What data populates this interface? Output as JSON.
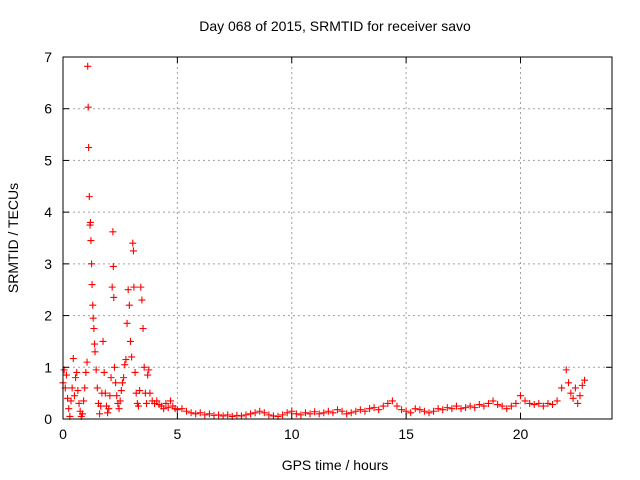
{
  "chart_data": {
    "type": "scatter",
    "title": "Day 068 of 2015, SRMTID for receiver savo",
    "xlabel": "GPS time / hours",
    "ylabel": "SRMTID / TECUs",
    "xlim": [
      0,
      24
    ],
    "ylim": [
      0,
      7
    ],
    "xticks": [
      0,
      5,
      10,
      15,
      20
    ],
    "yticks": [
      0,
      1,
      2,
      3,
      4,
      5,
      6,
      7
    ],
    "xtick_labels": [
      "0",
      "5",
      "10",
      "15",
      "20"
    ],
    "ytick_labels": [
      "0",
      "1",
      "2",
      "3",
      "4",
      "5",
      "6",
      "7"
    ],
    "grid": true,
    "marker": "+",
    "series": [
      {
        "name": "savo",
        "color": "#ff0000",
        "points": [
          [
            0.0,
            0.7
          ],
          [
            0.05,
            0.95
          ],
          [
            0.1,
            0.6
          ],
          [
            0.15,
            0.85
          ],
          [
            0.2,
            0.4
          ],
          [
            0.25,
            0.2
          ],
          [
            0.3,
            0.05
          ],
          [
            0.35,
            0.35
          ],
          [
            0.4,
            0.6
          ],
          [
            0.45,
            1.17
          ],
          [
            0.5,
            0.45
          ],
          [
            0.55,
            0.8
          ],
          [
            0.6,
            0.9
          ],
          [
            0.65,
            0.55
          ],
          [
            0.7,
            0.3
          ],
          [
            0.75,
            0.15
          ],
          [
            0.8,
            0.05
          ],
          [
            0.85,
            0.1
          ],
          [
            0.9,
            0.35
          ],
          [
            0.95,
            0.6
          ],
          [
            1.0,
            0.9
          ],
          [
            1.05,
            1.1
          ],
          [
            1.08,
            6.82
          ],
          [
            1.1,
            6.03
          ],
          [
            1.12,
            5.25
          ],
          [
            1.15,
            4.3
          ],
          [
            1.18,
            3.75
          ],
          [
            1.2,
            3.8
          ],
          [
            1.22,
            3.45
          ],
          [
            1.25,
            3.0
          ],
          [
            1.27,
            2.6
          ],
          [
            1.3,
            2.2
          ],
          [
            1.32,
            1.95
          ],
          [
            1.35,
            1.75
          ],
          [
            1.38,
            1.45
          ],
          [
            1.4,
            1.3
          ],
          [
            1.45,
            0.95
          ],
          [
            1.5,
            0.6
          ],
          [
            1.55,
            0.3
          ],
          [
            1.6,
            0.1
          ],
          [
            1.65,
            0.25
          ],
          [
            1.7,
            0.5
          ],
          [
            1.75,
            1.5
          ],
          [
            1.8,
            0.9
          ],
          [
            1.85,
            0.5
          ],
          [
            1.9,
            0.25
          ],
          [
            1.95,
            0.12
          ],
          [
            2.0,
            0.2
          ],
          [
            2.05,
            0.45
          ],
          [
            2.1,
            0.8
          ],
          [
            2.15,
            2.55
          ],
          [
            2.18,
            3.62
          ],
          [
            2.2,
            2.95
          ],
          [
            2.22,
            2.35
          ],
          [
            2.25,
            1.0
          ],
          [
            2.3,
            0.7
          ],
          [
            2.35,
            0.45
          ],
          [
            2.4,
            0.3
          ],
          [
            2.45,
            0.2
          ],
          [
            2.5,
            0.35
          ],
          [
            2.55,
            0.55
          ],
          [
            2.6,
            0.7
          ],
          [
            2.65,
            0.8
          ],
          [
            2.7,
            1.05
          ],
          [
            2.75,
            1.15
          ],
          [
            2.8,
            1.85
          ],
          [
            2.85,
            2.5
          ],
          [
            2.9,
            2.2
          ],
          [
            2.95,
            1.5
          ],
          [
            3.0,
            1.2
          ],
          [
            3.05,
            3.4
          ],
          [
            3.08,
            3.25
          ],
          [
            3.1,
            2.55
          ],
          [
            3.15,
            0.9
          ],
          [
            3.2,
            0.5
          ],
          [
            3.25,
            0.3
          ],
          [
            3.3,
            0.25
          ],
          [
            3.35,
            0.55
          ],
          [
            3.4,
            2.55
          ],
          [
            3.45,
            2.3
          ],
          [
            3.5,
            1.75
          ],
          [
            3.55,
            1.0
          ],
          [
            3.6,
            0.5
          ],
          [
            3.65,
            0.3
          ],
          [
            3.7,
            0.85
          ],
          [
            3.75,
            0.95
          ],
          [
            3.8,
            0.5
          ],
          [
            3.9,
            0.35
          ],
          [
            4.0,
            0.3
          ],
          [
            4.1,
            0.35
          ],
          [
            4.2,
            0.28
          ],
          [
            4.3,
            0.25
          ],
          [
            4.4,
            0.2
          ],
          [
            4.5,
            0.3
          ],
          [
            4.6,
            0.22
          ],
          [
            4.7,
            0.35
          ],
          [
            4.8,
            0.25
          ],
          [
            4.9,
            0.2
          ],
          [
            5.0,
            0.18
          ],
          [
            5.2,
            0.2
          ],
          [
            5.4,
            0.15
          ],
          [
            5.6,
            0.12
          ],
          [
            5.8,
            0.1
          ],
          [
            6.0,
            0.12
          ],
          [
            6.2,
            0.08
          ],
          [
            6.4,
            0.1
          ],
          [
            6.6,
            0.07
          ],
          [
            6.8,
            0.08
          ],
          [
            7.0,
            0.06
          ],
          [
            7.2,
            0.08
          ],
          [
            7.4,
            0.05
          ],
          [
            7.6,
            0.07
          ],
          [
            7.8,
            0.06
          ],
          [
            8.0,
            0.08
          ],
          [
            8.2,
            0.1
          ],
          [
            8.4,
            0.12
          ],
          [
            8.6,
            0.15
          ],
          [
            8.8,
            0.12
          ],
          [
            9.0,
            0.08
          ],
          [
            9.2,
            0.06
          ],
          [
            9.4,
            0.05
          ],
          [
            9.6,
            0.08
          ],
          [
            9.8,
            0.12
          ],
          [
            10.0,
            0.15
          ],
          [
            10.2,
            0.1
          ],
          [
            10.4,
            0.08
          ],
          [
            10.6,
            0.12
          ],
          [
            10.8,
            0.1
          ],
          [
            11.0,
            0.14
          ],
          [
            11.2,
            0.1
          ],
          [
            11.4,
            0.12
          ],
          [
            11.6,
            0.15
          ],
          [
            11.8,
            0.12
          ],
          [
            12.0,
            0.18
          ],
          [
            12.2,
            0.15
          ],
          [
            12.4,
            0.1
          ],
          [
            12.6,
            0.12
          ],
          [
            12.8,
            0.15
          ],
          [
            13.0,
            0.18
          ],
          [
            13.2,
            0.15
          ],
          [
            13.4,
            0.2
          ],
          [
            13.6,
            0.22
          ],
          [
            13.8,
            0.18
          ],
          [
            14.0,
            0.25
          ],
          [
            14.2,
            0.3
          ],
          [
            14.4,
            0.35
          ],
          [
            14.6,
            0.25
          ],
          [
            14.8,
            0.18
          ],
          [
            15.0,
            0.15
          ],
          [
            15.2,
            0.12
          ],
          [
            15.4,
            0.2
          ],
          [
            15.6,
            0.18
          ],
          [
            15.8,
            0.15
          ],
          [
            16.0,
            0.12
          ],
          [
            16.2,
            0.15
          ],
          [
            16.4,
            0.2
          ],
          [
            16.6,
            0.18
          ],
          [
            16.8,
            0.22
          ],
          [
            17.0,
            0.2
          ],
          [
            17.2,
            0.25
          ],
          [
            17.4,
            0.2
          ],
          [
            17.6,
            0.22
          ],
          [
            17.8,
            0.25
          ],
          [
            18.0,
            0.22
          ],
          [
            18.2,
            0.28
          ],
          [
            18.4,
            0.25
          ],
          [
            18.6,
            0.3
          ],
          [
            18.8,
            0.35
          ],
          [
            19.0,
            0.28
          ],
          [
            19.2,
            0.25
          ],
          [
            19.4,
            0.2
          ],
          [
            19.6,
            0.25
          ],
          [
            19.8,
            0.3
          ],
          [
            20.0,
            0.45
          ],
          [
            20.2,
            0.35
          ],
          [
            20.4,
            0.3
          ],
          [
            20.6,
            0.28
          ],
          [
            20.8,
            0.3
          ],
          [
            21.0,
            0.25
          ],
          [
            21.2,
            0.3
          ],
          [
            21.4,
            0.28
          ],
          [
            21.6,
            0.35
          ],
          [
            21.8,
            0.6
          ],
          [
            22.0,
            0.95
          ],
          [
            22.1,
            0.7
          ],
          [
            22.2,
            0.5
          ],
          [
            22.3,
            0.4
          ],
          [
            22.4,
            0.6
          ],
          [
            22.5,
            0.3
          ],
          [
            22.6,
            0.45
          ],
          [
            22.7,
            0.65
          ],
          [
            22.8,
            0.75
          ]
        ]
      }
    ]
  }
}
